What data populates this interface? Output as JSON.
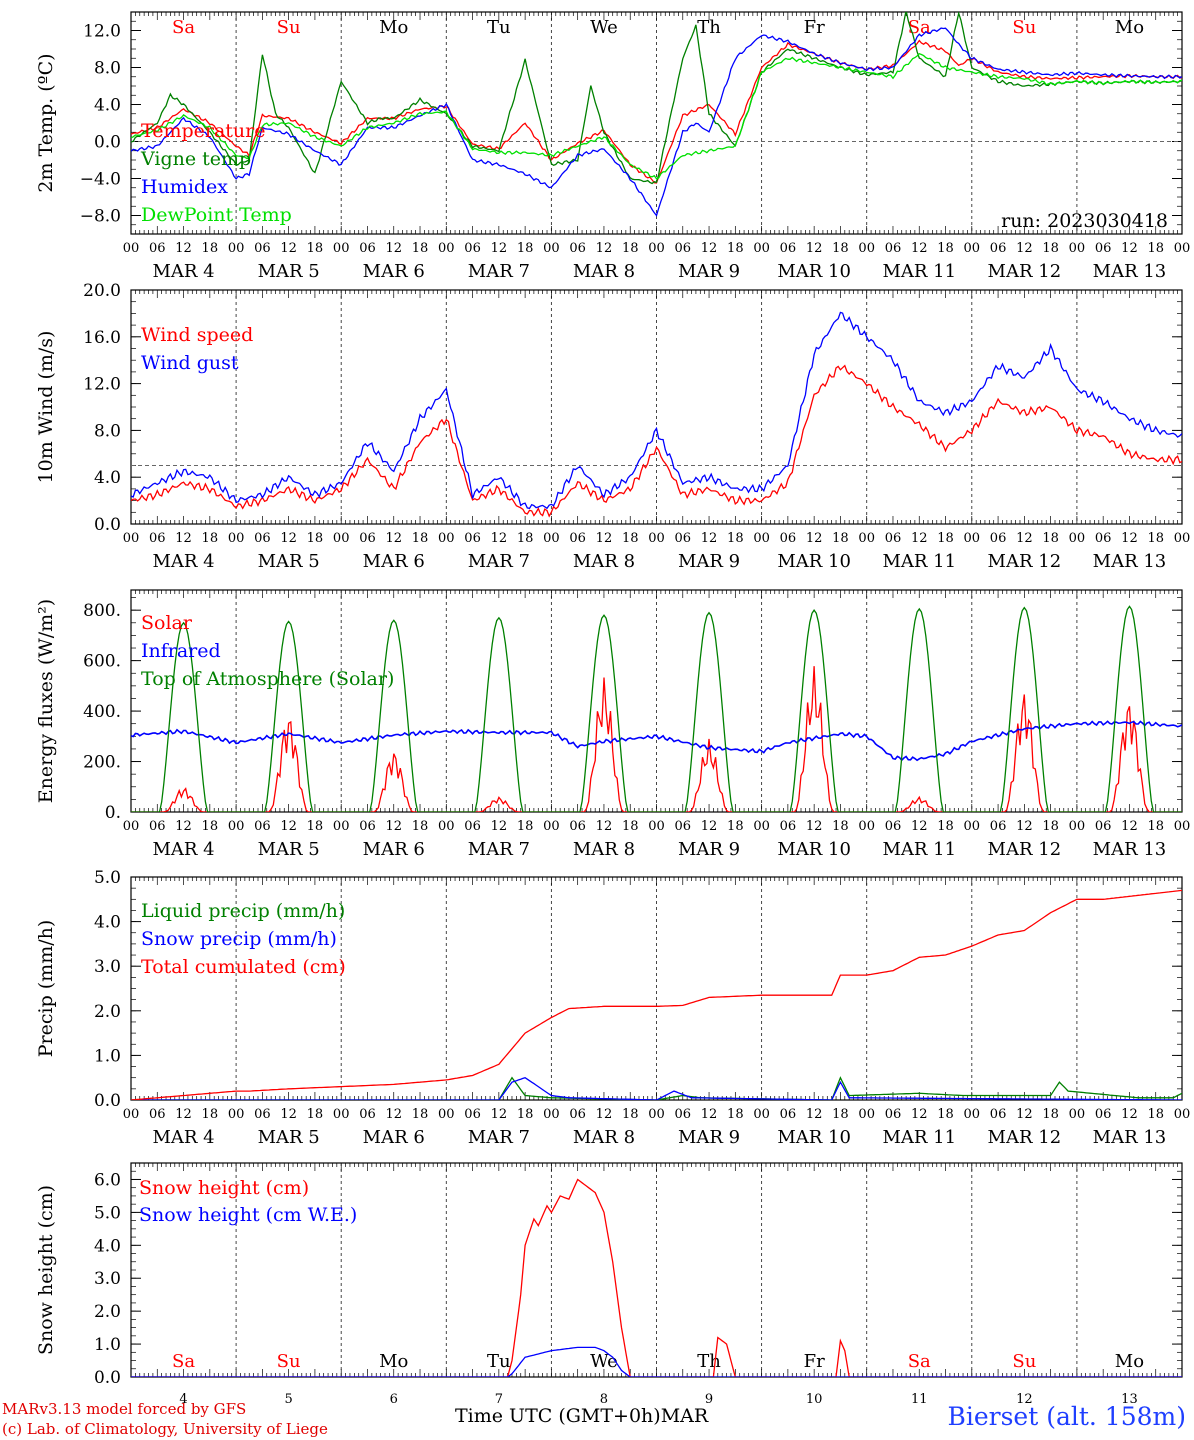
{
  "footer": {
    "credit_line1": "MARv3.13 model forced by GFS",
    "credit_line2": "(c) Lab. of Climatology, University of Liege",
    "x_title": "Time UTC (GMT+0h)",
    "x_title_month": "MAR",
    "station": "Bierset (alt. 158m)"
  },
  "colors": {
    "red": "#ff0000",
    "blue": "#0000ff",
    "green": "#008000",
    "lightgreen": "#00e000",
    "grid": "#555555"
  },
  "hour_ticks": [
    "00",
    "06",
    "12",
    "18"
  ],
  "days": [
    {
      "label": "MAR 4",
      "dow": "Sa",
      "weekend": true,
      "num": "4"
    },
    {
      "label": "MAR 5",
      "dow": "Su",
      "weekend": true,
      "num": "5"
    },
    {
      "label": "MAR 6",
      "dow": "Mo",
      "weekend": false,
      "num": "6"
    },
    {
      "label": "MAR 7",
      "dow": "Tu",
      "weekend": false,
      "num": "7"
    },
    {
      "label": "MAR 8",
      "dow": "We",
      "weekend": false,
      "num": "8"
    },
    {
      "label": "MAR 9",
      "dow": "Th",
      "weekend": false,
      "num": "9"
    },
    {
      "label": "MAR 10",
      "dow": "Fr",
      "weekend": false,
      "num": "10"
    },
    {
      "label": "MAR 11",
      "dow": "Sa",
      "weekend": true,
      "num": "11"
    },
    {
      "label": "MAR 12",
      "dow": "Su",
      "weekend": true,
      "num": "12"
    },
    {
      "label": "MAR 13",
      "dow": "Mo",
      "weekend": false,
      "num": "13"
    }
  ],
  "chart_data": [
    {
      "type": "line",
      "ylabel": "2m Temp. (ºC)",
      "ylim": [
        -10,
        14
      ],
      "yticks": [
        -8,
        -4,
        0,
        4,
        8,
        12
      ],
      "ytick_labels": [
        "−8.0",
        "−4.0",
        "0.0",
        "4.0",
        "8.0",
        "12.0"
      ],
      "ref_line": 0,
      "annotation": "run: 2023030418",
      "x_unit": "hours since MAR 4 00 UTC",
      "series": [
        {
          "name": "Temperature",
          "color": "#ff0000",
          "x": [
            0,
            6,
            12,
            18,
            24,
            27,
            30,
            36,
            42,
            48,
            54,
            60,
            66,
            72,
            78,
            84,
            90,
            96,
            102,
            108,
            114,
            120,
            126,
            132,
            138,
            144,
            150,
            156,
            162,
            168,
            174,
            180,
            186,
            189,
            192,
            198,
            204,
            210,
            216,
            222,
            228,
            234,
            240
          ],
          "y": [
            0.8,
            1.5,
            3.5,
            2.0,
            -0.5,
            -1.5,
            2.8,
            2.5,
            1.0,
            -0.2,
            2.5,
            2.5,
            3.5,
            3.8,
            -0.3,
            -0.8,
            2.0,
            -2.0,
            -0.2,
            1.2,
            -2.5,
            -4.5,
            2.8,
            4.0,
            0.8,
            8.0,
            10.5,
            9.5,
            8.5,
            7.8,
            8.2,
            10.8,
            9.8,
            8.2,
            9.0,
            7.5,
            7.0,
            6.8,
            6.9,
            7.0,
            7.1,
            7.0,
            7.0
          ]
        },
        {
          "name": "Vigne temp",
          "color": "#008000",
          "x": [
            0,
            6,
            9,
            12,
            18,
            24,
            27,
            30,
            33,
            36,
            42,
            48,
            54,
            57,
            60,
            66,
            72,
            78,
            84,
            90,
            96,
            102,
            105,
            108,
            114,
            120,
            126,
            129,
            132,
            138,
            144,
            150,
            156,
            162,
            168,
            174,
            177,
            180,
            186,
            189,
            192,
            198,
            204,
            210,
            216,
            222,
            228,
            234,
            240
          ],
          "y": [
            0.0,
            2.0,
            5.0,
            4.0,
            1.0,
            -2.5,
            -2.0,
            9.5,
            3.0,
            1.5,
            -3.5,
            6.5,
            2.0,
            2.5,
            2.5,
            4.5,
            3.0,
            -0.5,
            -1.0,
            8.8,
            -2.5,
            -2.0,
            6.0,
            1.0,
            -4.0,
            -4.5,
            9.0,
            12.5,
            3.0,
            -0.5,
            7.5,
            10.0,
            9.0,
            8.0,
            7.2,
            7.5,
            14.0,
            9.0,
            7.0,
            14.0,
            8.0,
            6.5,
            6.0,
            6.2,
            6.5,
            6.3,
            6.5,
            6.4,
            6.5
          ]
        },
        {
          "name": "Humidex",
          "color": "#0000ff",
          "x": [
            0,
            6,
            12,
            18,
            24,
            27,
            30,
            36,
            42,
            48,
            54,
            60,
            66,
            72,
            78,
            84,
            90,
            96,
            102,
            108,
            114,
            120,
            126,
            129,
            132,
            138,
            144,
            150,
            156,
            162,
            168,
            174,
            180,
            186,
            189,
            192,
            198,
            204,
            210,
            216,
            222,
            228,
            234,
            240
          ],
          "y": [
            -1.0,
            -0.5,
            2.5,
            0.5,
            -4.0,
            -3.5,
            1.5,
            0.8,
            -1.0,
            -2.5,
            1.5,
            1.5,
            2.8,
            4.0,
            -2.0,
            -2.5,
            -3.5,
            -5.0,
            -1.5,
            -0.8,
            -4.0,
            -8.0,
            1.0,
            2.0,
            1.0,
            9.0,
            11.5,
            10.8,
            9.5,
            8.5,
            7.8,
            8.0,
            11.5,
            12.3,
            10.5,
            9.0,
            7.8,
            7.5,
            7.2,
            7.4,
            7.2,
            7.1,
            7.0,
            7.0
          ]
        },
        {
          "name": "DewPoint Temp",
          "color": "#00e000",
          "x": [
            0,
            6,
            12,
            18,
            24,
            27,
            30,
            36,
            42,
            48,
            54,
            60,
            66,
            72,
            78,
            84,
            90,
            96,
            102,
            108,
            114,
            120,
            126,
            132,
            138,
            144,
            150,
            156,
            162,
            168,
            174,
            180,
            186,
            192,
            198,
            204,
            210,
            216,
            222,
            228,
            234,
            240
          ],
          "y": [
            0.5,
            1.2,
            2.8,
            1.5,
            -1.5,
            -1.8,
            1.8,
            2.0,
            0.5,
            -0.5,
            1.5,
            2.0,
            3.0,
            3.2,
            -0.8,
            -1.2,
            -1.2,
            -1.5,
            -0.5,
            0.5,
            -2.5,
            -4.0,
            -1.5,
            -1.0,
            -0.5,
            7.5,
            9.0,
            8.5,
            8.0,
            7.5,
            7.0,
            9.5,
            8.0,
            7.5,
            7.0,
            6.8,
            6.2,
            6.5,
            6.3,
            6.5,
            6.4,
            6.5
          ]
        }
      ]
    },
    {
      "type": "line",
      "ylabel": "10m Wind (m/s)",
      "ylim": [
        0,
        20
      ],
      "yticks": [
        0,
        4,
        8,
        12,
        16,
        20
      ],
      "ytick_labels": [
        "0.0",
        "4.0",
        "8.0",
        "12.0",
        "16.0",
        "20.0"
      ],
      "ref_line": 5,
      "series": [
        {
          "name": "Wind speed",
          "color": "#ff0000",
          "x": [
            0,
            6,
            12,
            18,
            24,
            30,
            36,
            42,
            48,
            54,
            60,
            66,
            72,
            78,
            84,
            90,
            96,
            102,
            108,
            114,
            120,
            126,
            132,
            138,
            144,
            150,
            156,
            162,
            168,
            174,
            180,
            186,
            192,
            198,
            204,
            210,
            216,
            222,
            228,
            234,
            240
          ],
          "y": [
            2.0,
            2.5,
            3.5,
            3.0,
            1.5,
            2.0,
            3.0,
            2.0,
            3.0,
            5.5,
            3.0,
            7.0,
            9.0,
            2.0,
            3.0,
            1.0,
            1.0,
            3.5,
            2.0,
            3.0,
            6.5,
            2.5,
            3.0,
            2.0,
            2.0,
            3.5,
            11.0,
            13.5,
            12.0,
            10.0,
            8.5,
            6.5,
            8.0,
            10.5,
            9.5,
            10.0,
            8.0,
            7.5,
            6.0,
            5.5,
            5.5
          ]
        },
        {
          "name": "Wind gust",
          "color": "#0000ff",
          "x": [
            0,
            6,
            12,
            18,
            24,
            30,
            36,
            42,
            48,
            54,
            60,
            66,
            72,
            78,
            84,
            90,
            96,
            102,
            108,
            114,
            120,
            126,
            132,
            138,
            144,
            150,
            156,
            162,
            168,
            174,
            180,
            186,
            192,
            198,
            204,
            210,
            216,
            222,
            228,
            234,
            240
          ],
          "y": [
            2.5,
            3.5,
            4.5,
            4.0,
            2.0,
            2.5,
            4.0,
            2.5,
            3.5,
            7.0,
            4.5,
            9.0,
            11.5,
            2.5,
            4.0,
            1.5,
            1.5,
            5.0,
            2.5,
            4.0,
            8.0,
            3.5,
            4.0,
            3.0,
            3.0,
            5.0,
            14.5,
            18.0,
            16.0,
            14.0,
            10.5,
            9.5,
            10.5,
            13.5,
            12.5,
            15.0,
            11.5,
            10.5,
            9.0,
            8.0,
            7.5
          ]
        }
      ]
    },
    {
      "type": "line",
      "ylabel": "Energy fluxes (W/m²)",
      "ylim": [
        0,
        880
      ],
      "yticks": [
        0,
        200,
        400,
        600,
        800
      ],
      "ytick_labels": [
        "0.",
        "200.",
        "400.",
        "600.",
        "800."
      ],
      "series": [
        {
          "name": "Solar",
          "color": "#ff0000",
          "daily_peak": [
            100,
            400,
            250,
            60,
            540,
            290,
            580,
            60,
            490,
            460
          ]
        },
        {
          "name": "Infrared",
          "color": "#0000ff",
          "x": [
            0,
            12,
            24,
            36,
            48,
            60,
            72,
            84,
            96,
            102,
            108,
            120,
            132,
            144,
            150,
            162,
            168,
            174,
            180,
            186,
            192,
            204,
            216,
            228,
            240
          ],
          "y": [
            305,
            320,
            275,
            310,
            275,
            305,
            320,
            315,
            315,
            260,
            280,
            300,
            255,
            240,
            275,
            310,
            300,
            215,
            210,
            230,
            280,
            330,
            350,
            355,
            340
          ]
        },
        {
          "name": "Top of Atmosphere (Solar)",
          "color": "#008000",
          "daily_peak": [
            750,
            755,
            760,
            770,
            780,
            790,
            800,
            805,
            810,
            815
          ]
        }
      ]
    },
    {
      "type": "line",
      "ylabel": "Precip (mm/h)",
      "ylim": [
        0,
        5
      ],
      "yticks": [
        0,
        1,
        2,
        3,
        4,
        5
      ],
      "ytick_labels": [
        "0.0",
        "1.0",
        "2.0",
        "3.0",
        "4.0",
        "5.0"
      ],
      "series": [
        {
          "name": "Liquid precip (mm/h)",
          "color": "#008000",
          "x": [
            0,
            60,
            84,
            87,
            90,
            96,
            120,
            126,
            130,
            160,
            162,
            164,
            180,
            190,
            210,
            212,
            214,
            230,
            238,
            240
          ],
          "y": [
            0,
            0,
            0,
            0.5,
            0.1,
            0.05,
            0,
            0.1,
            0.05,
            0,
            0.5,
            0.1,
            0.15,
            0.1,
            0.1,
            0.4,
            0.2,
            0.05,
            0.05,
            0.15
          ]
        },
        {
          "name": "Snow precip (mm/h)",
          "color": "#0000ff",
          "x": [
            0,
            84,
            87,
            90,
            93,
            96,
            100,
            120,
            124,
            128,
            160,
            162,
            164,
            240
          ],
          "y": [
            0,
            0,
            0.4,
            0.5,
            0.3,
            0.1,
            0.05,
            0,
            0.2,
            0.05,
            0,
            0.4,
            0.05,
            0
          ]
        },
        {
          "name": "Total cumulated (cm)",
          "color": "#ff0000",
          "x": [
            0,
            12,
            24,
            27,
            36,
            48,
            60,
            72,
            78,
            84,
            90,
            96,
            100,
            108,
            120,
            126,
            132,
            144,
            150,
            160,
            162,
            168,
            174,
            180,
            186,
            192,
            198,
            204,
            210,
            216,
            222,
            240
          ],
          "y": [
            0,
            0.1,
            0.2,
            0.2,
            0.25,
            0.3,
            0.35,
            0.45,
            0.55,
            0.8,
            1.5,
            1.85,
            2.05,
            2.1,
            2.1,
            2.12,
            2.3,
            2.35,
            2.35,
            2.35,
            2.8,
            2.8,
            2.9,
            3.2,
            3.25,
            3.45,
            3.7,
            3.8,
            4.2,
            4.5,
            4.5,
            4.7
          ]
        }
      ]
    },
    {
      "type": "line",
      "ylabel": "Snow height (cm)",
      "ylim": [
        0,
        6.5
      ],
      "yticks": [
        0,
        1,
        2,
        3,
        4,
        5,
        6
      ],
      "ytick_labels": [
        "0.0",
        "1.0",
        "2.0",
        "3.0",
        "4.0",
        "5.0",
        "6.0"
      ],
      "series": [
        {
          "name": "Snow height (cm)",
          "color": "#ff0000",
          "x": [
            0,
            86,
            87,
            89,
            90,
            92,
            93,
            95,
            96,
            98,
            100,
            102,
            104,
            106,
            108,
            110,
            112,
            114,
            132,
            133,
            134,
            136,
            138,
            160,
            161,
            162,
            163,
            164,
            240
          ],
          "y": [
            0,
            0,
            0.5,
            2.5,
            4.0,
            4.8,
            4.6,
            5.2,
            5.0,
            5.5,
            5.4,
            6.0,
            5.8,
            5.6,
            5.0,
            3.5,
            1.5,
            0,
            0,
            0,
            1.2,
            1.0,
            0,
            0,
            0,
            1.1,
            0.8,
            0,
            0
          ]
        },
        {
          "name": "Snow height (cm W.E.)",
          "color": "#0000ff",
          "x": [
            0,
            86,
            87,
            90,
            96,
            102,
            106,
            108,
            110,
            112,
            114,
            240
          ],
          "y": [
            0,
            0,
            0.1,
            0.6,
            0.8,
            0.9,
            0.9,
            0.8,
            0.6,
            0.2,
            0,
            0
          ]
        }
      ]
    }
  ]
}
